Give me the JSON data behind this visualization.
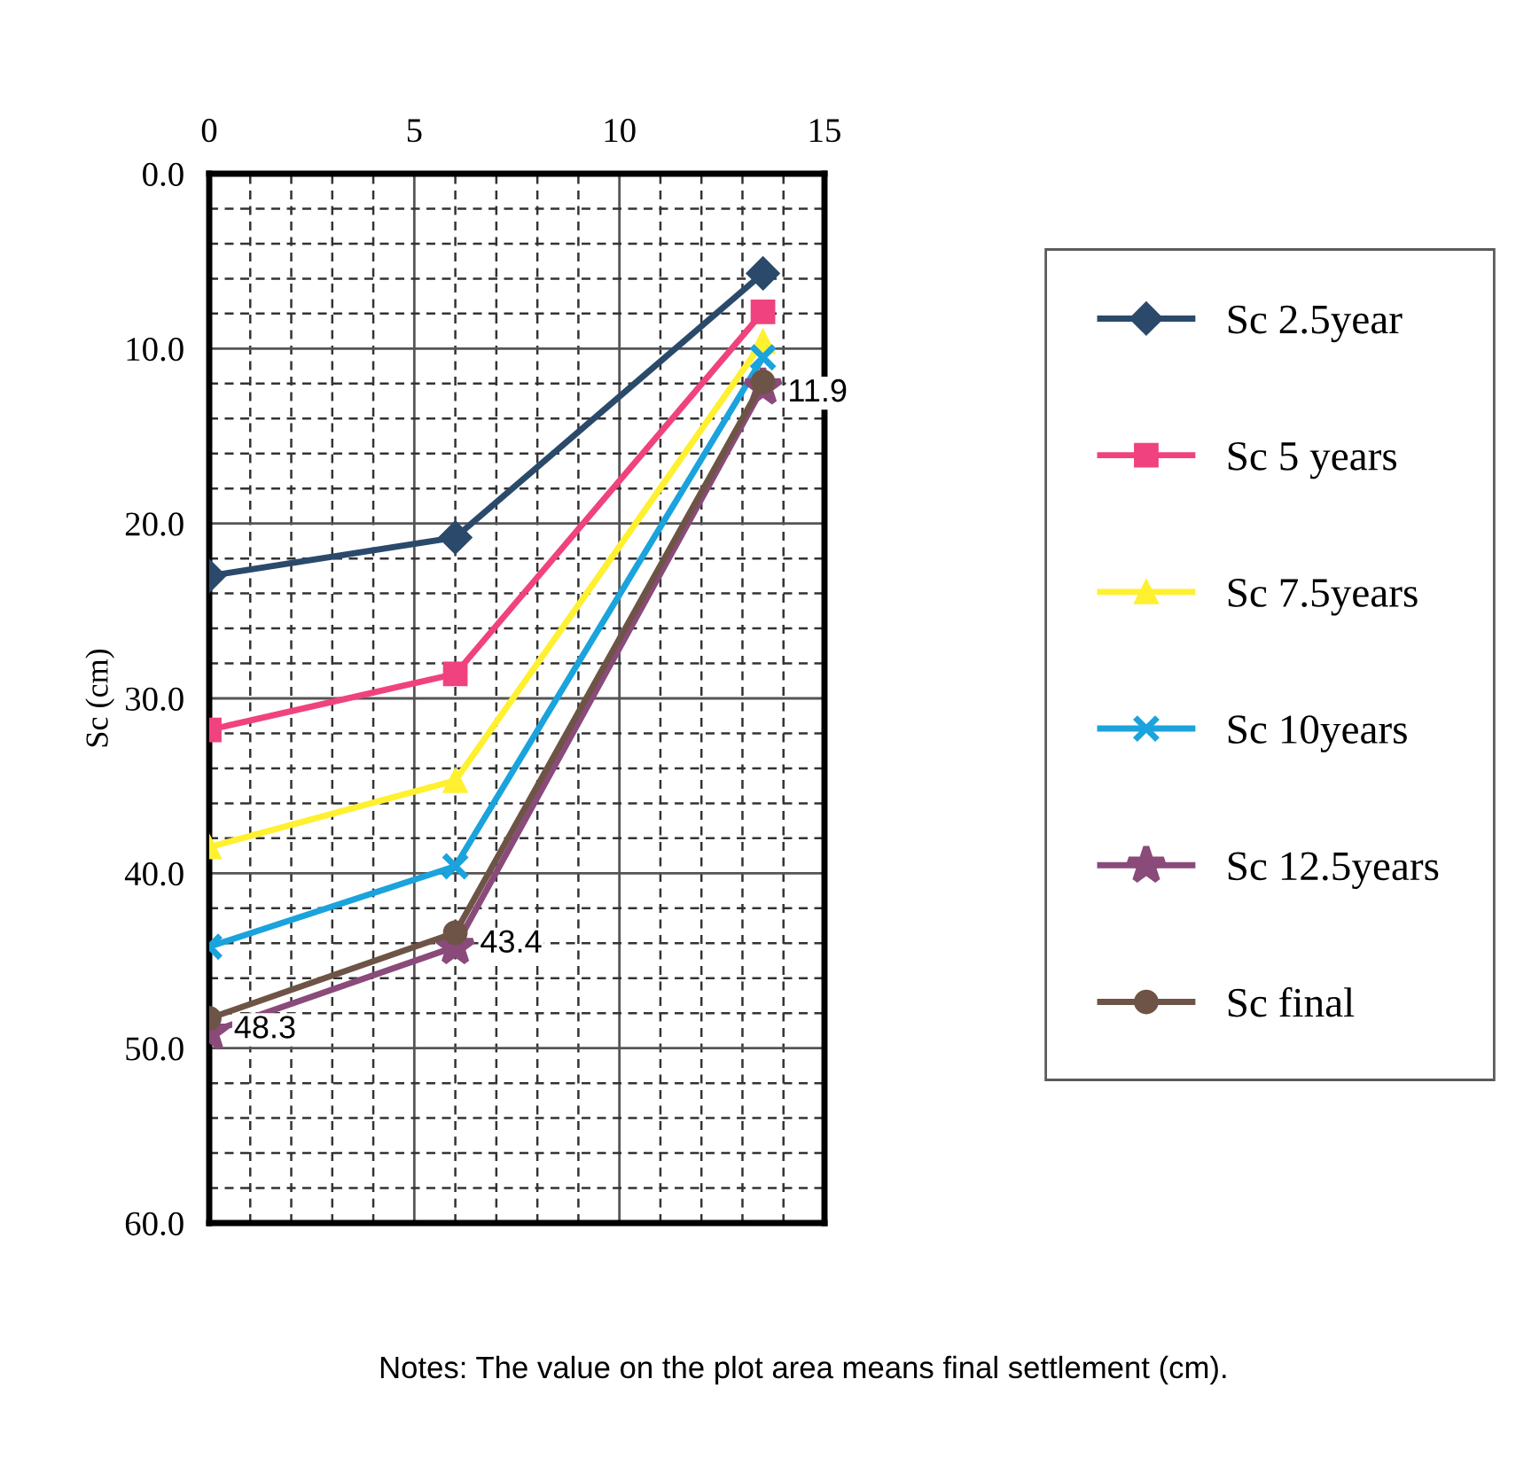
{
  "chart_data": {
    "type": "line",
    "ylabel": "Sc (cm)",
    "x": [
      0,
      6,
      13.5
    ],
    "xlim": [
      0,
      15
    ],
    "xticks": [
      0,
      5,
      10,
      15
    ],
    "ylim": [
      60,
      0
    ],
    "yticks": [
      {
        "value": 0,
        "label": "0.0"
      },
      {
        "value": 10,
        "label": "10.0"
      },
      {
        "value": 20,
        "label": "20.0"
      },
      {
        "value": 30,
        "label": "30.0"
      },
      {
        "value": 40,
        "label": "40.0"
      },
      {
        "value": 50,
        "label": "50.0"
      },
      {
        "value": 60,
        "label": "60.0"
      }
    ],
    "grid": true,
    "legend": "right",
    "series": [
      {
        "name": "Sc 2.5year",
        "color": "#2b4a6b",
        "marker": "diamond",
        "values": [
          23.0,
          20.8,
          5.7
        ]
      },
      {
        "name": "Sc 5 years",
        "color": "#f0427f",
        "marker": "square",
        "values": [
          31.8,
          28.6,
          7.9
        ]
      },
      {
        "name": "Sc 7.5years",
        "color": "#fff030",
        "marker": "triangle",
        "values": [
          38.5,
          34.7,
          9.6
        ]
      },
      {
        "name": "Sc 10years",
        "color": "#1aa3dc",
        "marker": "cross",
        "values": [
          44.2,
          39.6,
          10.5
        ]
      },
      {
        "name": "Sc 12.5years",
        "color": "#8a4a7a",
        "marker": "star",
        "values": [
          49.1,
          44.2,
          12.2
        ]
      },
      {
        "name": "Sc final",
        "color": "#6e5446",
        "marker": "circle",
        "values": [
          48.3,
          43.4,
          11.9
        ],
        "value_labels": [
          "48.3",
          "43.4",
          "11.9"
        ]
      }
    ],
    "annotations": [
      "Notes: The value on the plot area means final settlement (cm)."
    ]
  }
}
